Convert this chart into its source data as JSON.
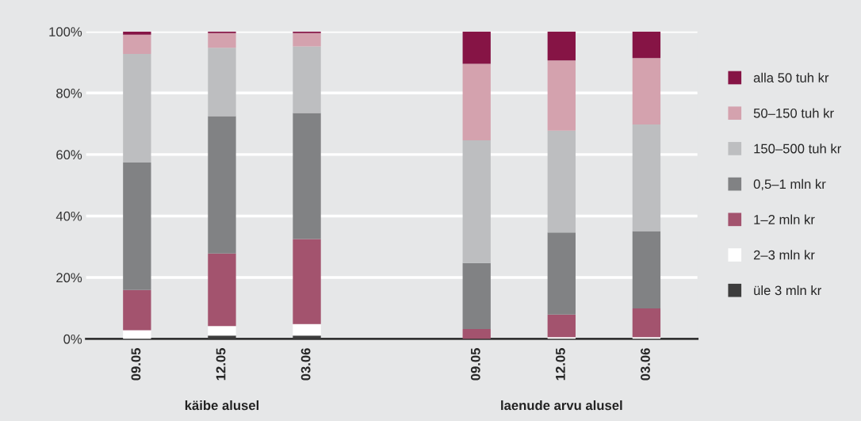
{
  "chart_data": {
    "type": "bar",
    "stacked": true,
    "categories": [
      "09.05",
      "12.05",
      "03.06",
      null,
      "09.05",
      "12.05",
      "03.06"
    ],
    "series": [
      {
        "name": "üle 3 mln kr",
        "color": "#3d3d3d",
        "values": [
          0,
          1.1,
          1.1,
          null,
          0,
          0,
          0
        ]
      },
      {
        "name": "2–3 mln kr",
        "color": "#ffffff",
        "values": [
          2.8,
          3.1,
          3.7,
          null,
          0,
          0.6,
          0.6
        ]
      },
      {
        "name": "1–2 mln kr",
        "color": "#a3536e",
        "values": [
          13.1,
          23.6,
          27.7,
          null,
          3.2,
          7.3,
          9.3
        ]
      },
      {
        "name": "0,5–1 mln kr",
        "color": "#818284",
        "values": [
          41.5,
          44.7,
          41.0,
          null,
          21.5,
          26.7,
          25.2
        ]
      },
      {
        "name": "150–500 tuh kr",
        "color": "#bdbec0",
        "values": [
          35.3,
          22.2,
          21.7,
          null,
          39.9,
          33.2,
          34.7
        ]
      },
      {
        "name": "50–150 tuh kr",
        "color": "#d4a2ae",
        "values": [
          6.3,
          4.8,
          4.3,
          null,
          24.9,
          22.8,
          21.6
        ]
      },
      {
        "name": "alla 50 tuh kr",
        "color": "#861445",
        "values": [
          1.0,
          0.5,
          0.5,
          null,
          10.5,
          9.4,
          8.6
        ]
      }
    ],
    "ylim": [
      0,
      100
    ],
    "yticks": [
      {
        "value": 0,
        "label": "0%"
      },
      {
        "value": 20,
        "label": "20%"
      },
      {
        "value": 40,
        "label": "40%"
      },
      {
        "value": 60,
        "label": "60%"
      },
      {
        "value": 80,
        "label": "80%"
      },
      {
        "value": 100,
        "label": "100%"
      }
    ],
    "grid": "y",
    "legend": "right",
    "annotations": [
      "käibe alusel",
      "laenude arvu alusel"
    ]
  }
}
